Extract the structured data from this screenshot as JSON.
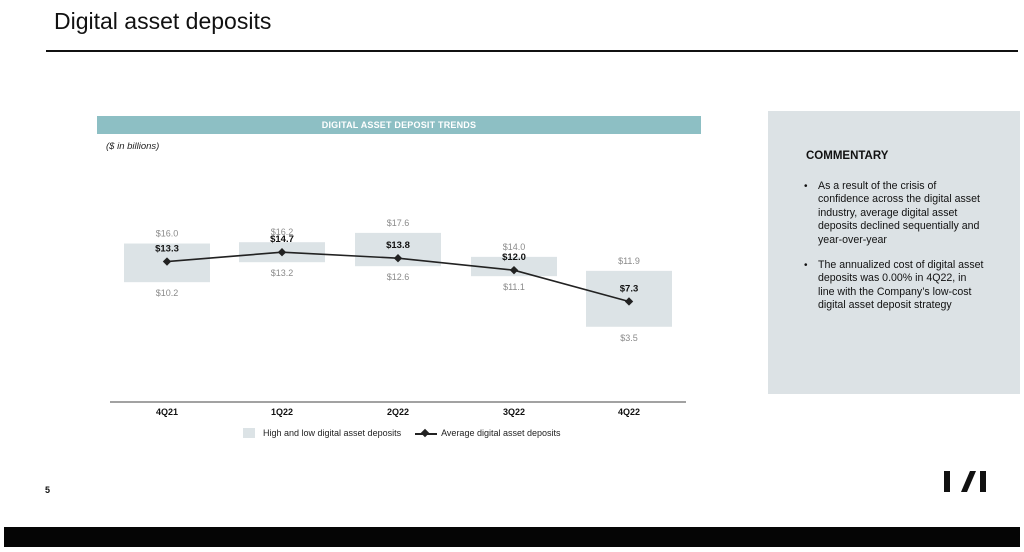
{
  "page": {
    "title": "Digital asset deposits",
    "page_number": "5"
  },
  "chart_data": {
    "type": "line",
    "title": "DIGITAL ASSET DEPOSIT TRENDS",
    "units_note": "($ in billions)",
    "categories": [
      "4Q21",
      "1Q22",
      "2Q22",
      "3Q22",
      "4Q22"
    ],
    "series": [
      {
        "name": "Average digital asset deposits",
        "kind": "line",
        "values": [
          13.3,
          14.7,
          13.8,
          12.0,
          7.3
        ],
        "labels": [
          "$13.3",
          "$14.7",
          "$13.8",
          "$12.0",
          "$7.3"
        ]
      },
      {
        "name": "High and low digital asset deposits",
        "kind": "range",
        "high": [
          16.0,
          16.2,
          17.6,
          14.0,
          11.9
        ],
        "low": [
          10.2,
          13.2,
          12.6,
          11.1,
          3.5
        ],
        "high_labels": [
          "$16.0",
          "$16.2",
          "$17.6",
          "$14.0",
          "$11.9"
        ],
        "low_labels": [
          "$10.2",
          "$13.2",
          "$12.6",
          "$11.1",
          "$3.5"
        ]
      }
    ],
    "legend": [
      "High and low digital asset deposits",
      "Average digital asset deposits"
    ],
    "legend_position": "bottom",
    "grid": false,
    "colors": {
      "range_box": "#dce3e6",
      "line": "#222222",
      "banner": "#8dbfc4",
      "range_label": "#8a8a8a"
    }
  },
  "commentary": {
    "heading": "COMMENTARY",
    "bullets": [
      "As a result of the crisis of confidence across the digital asset industry, average digital asset deposits declined sequentially and year-over-year",
      "The annualized cost of digital asset deposits was 0.00% in 4Q22, in line with the Company’s low-cost digital asset deposit strategy"
    ],
    "panel_color": "#dce2e5"
  },
  "logo": {
    "icon": "company-logo-icon"
  }
}
